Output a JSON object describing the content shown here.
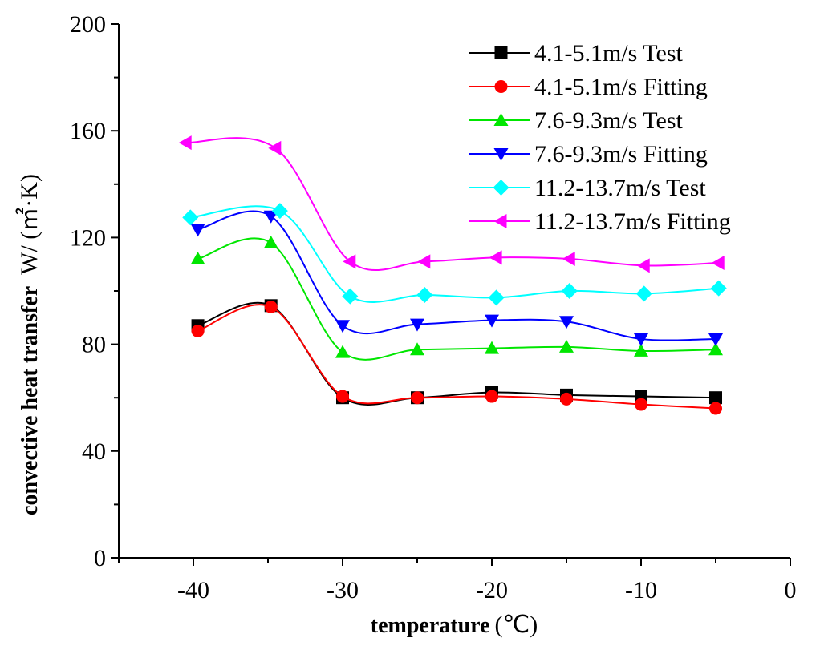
{
  "chart_data": {
    "type": "line",
    "title": "",
    "xlabel": "temperature",
    "xlabel_unit": "(℃)",
    "ylabel": "convective heat transfer",
    "ylabel_unit": "W/ (㎡·K)",
    "xlim": [
      -45,
      0
    ],
    "ylim": [
      0,
      200
    ],
    "xticks": [
      -40,
      -30,
      -20,
      -10,
      0
    ],
    "yticks": [
      0,
      40,
      80,
      120,
      160,
      200
    ],
    "grid": false,
    "legend_position": "top-right",
    "series": [
      {
        "name": "4.1-5.1m/s Test",
        "color": "#000000",
        "marker": "square",
        "x": [
          -39.7,
          -34.8,
          -30,
          -25,
          -20,
          -15,
          -10,
          -5
        ],
        "y": [
          87,
          94.5,
          60,
          60,
          62,
          61,
          60.5,
          60
        ]
      },
      {
        "name": "4.1-5.1m/s Fitting",
        "color": "#ff0000",
        "marker": "circle",
        "x": [
          -39.7,
          -34.8,
          -30,
          -25,
          -20,
          -15,
          -10,
          -5
        ],
        "y": [
          85,
          94,
          60.5,
          60,
          60.5,
          59.5,
          57.5,
          56
        ]
      },
      {
        "name": "7.6-9.3m/s Test",
        "color": "#00e600",
        "marker": "triangle-up",
        "x": [
          -39.7,
          -34.8,
          -30,
          -25,
          -20,
          -15,
          -10,
          -5
        ],
        "y": [
          112,
          118,
          77,
          78,
          78.5,
          79,
          77.5,
          78
        ]
      },
      {
        "name": "7.6-9.3m/s Fitting",
        "color": "#0000ff",
        "marker": "triangle-down",
        "x": [
          -39.7,
          -34.8,
          -30,
          -25,
          -20,
          -15,
          -10,
          -5
        ],
        "y": [
          123,
          128,
          87,
          87.5,
          89,
          88.5,
          82,
          82
        ]
      },
      {
        "name": "11.2-13.7m/s Test",
        "color": "#00ffff",
        "marker": "diamond",
        "x": [
          -40.2,
          -34.2,
          -29.5,
          -24.5,
          -19.7,
          -14.8,
          -9.8,
          -4.8
        ],
        "y": [
          127.5,
          130,
          98,
          98.5,
          97.5,
          100,
          99,
          101
        ]
      },
      {
        "name": "11.2-13.7m/s Fitting",
        "color": "#ff00ff",
        "marker": "triangle-left",
        "x": [
          -40.5,
          -34.5,
          -29.5,
          -24.5,
          -19.7,
          -14.8,
          -9.8,
          -4.8
        ],
        "y": [
          155.5,
          153.5,
          111,
          111,
          112.5,
          112,
          109.5,
          110.5
        ]
      }
    ]
  }
}
